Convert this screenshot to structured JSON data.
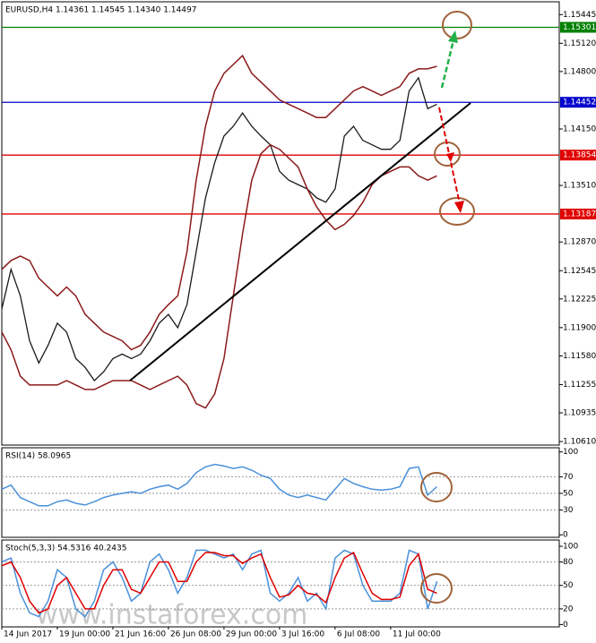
{
  "chart_data": [
    {
      "type": "line",
      "title": "EURUSD,H4 1.14361 1.14545 1.14340 1.14497",
      "ylim": [
        1.1057,
        1.1559
      ],
      "yticks": [
        1.15445,
        {
          "value": 1.1512,
          "label": "1.15120"
        },
        {
          "value": 1.148,
          "label": "1.14800"
        },
        {
          "value": 1.1415,
          "label": "1.14150"
        },
        {
          "value": 1.1351,
          "label": "1.13510"
        },
        {
          "value": 1.1287,
          "label": "1.12870"
        },
        1.12545,
        1.12225,
        {
          "value": 1.119,
          "label": "1.11900"
        },
        {
          "value": 1.1158,
          "label": "1.11580"
        },
        1.11255,
        1.10935,
        {
          "value": 1.1061,
          "label": "1.10610"
        }
      ],
      "grid": false,
      "levels": [
        {
          "value": 1.15301,
          "color": "#008000"
        },
        {
          "value": 1.14452,
          "color": "#0000cc"
        },
        {
          "value": 1.13854,
          "color": "#e00000"
        },
        {
          "value": 1.13187,
          "color": "#e00000"
        }
      ],
      "series": [
        {
          "color": "#1a1a1a",
          "values": [
            1.1211,
            1.1256,
            1.1226,
            1.1175,
            1.115,
            1.117,
            1.1195,
            1.1185,
            1.1155,
            1.1145,
            1.113,
            1.114,
            1.1155,
            1.116,
            1.1155,
            1.116,
            1.1175,
            1.1195,
            1.1205,
            1.119,
            1.1216,
            1.1276,
            1.1337,
            1.1377,
            1.1407,
            1.1418,
            1.1433,
            1.1418,
            1.1407,
            1.1397,
            1.1367,
            1.1357,
            1.1352,
            1.1347,
            1.1337,
            1.1332,
            1.1347,
            1.1407,
            1.1418,
            1.1402,
            1.1397,
            1.1392,
            1.1392,
            1.1402,
            1.1458,
            1.1473,
            1.1438,
            1.1443
          ]
        },
        {
          "color": "#8b1a1a",
          "values": [
            1.1256,
            1.1266,
            1.1271,
            1.1266,
            1.1246,
            1.1236,
            1.1226,
            1.1236,
            1.1226,
            1.1205,
            1.1195,
            1.1185,
            1.118,
            1.1175,
            1.1165,
            1.117,
            1.1185,
            1.1205,
            1.1216,
            1.1226,
            1.1276,
            1.1357,
            1.1418,
            1.1458,
            1.1478,
            1.1488,
            1.1498,
            1.1478,
            1.1468,
            1.1458,
            1.1448,
            1.1443,
            1.1438,
            1.1433,
            1.1428,
            1.1428,
            1.1438,
            1.1448,
            1.1458,
            1.1463,
            1.1458,
            1.1453,
            1.1458,
            1.1463,
            1.1478,
            1.1483,
            1.1483,
            1.1486
          ]
        },
        {
          "color": "#8b1a1a",
          "values": [
            1.1185,
            1.1165,
            1.1135,
            1.1125,
            1.1125,
            1.1125,
            1.1125,
            1.113,
            1.1125,
            1.112,
            1.112,
            1.1125,
            1.113,
            1.113,
            1.113,
            1.1125,
            1.112,
            1.1125,
            1.113,
            1.1135,
            1.1125,
            1.1104,
            1.1099,
            1.1115,
            1.1155,
            1.1226,
            1.1296,
            1.1357,
            1.1387,
            1.1397,
            1.1392,
            1.1382,
            1.1372,
            1.1347,
            1.1327,
            1.1312,
            1.1301,
            1.1307,
            1.1317,
            1.1332,
            1.1352,
            1.1362,
            1.1367,
            1.1372,
            1.1372,
            1.1362,
            1.1357,
            1.1362
          ]
        }
      ]
    },
    {
      "type": "line",
      "title": "RSI(14) 58.0965",
      "ylim": [
        -3,
        105
      ],
      "yticks": [
        100,
        70,
        50,
        30,
        0
      ],
      "grid": true,
      "series": [
        {
          "color": "#4a90d9",
          "values": [
            55,
            60,
            45,
            40,
            35,
            35,
            40,
            42,
            38,
            36,
            40,
            45,
            48,
            50,
            52,
            50,
            55,
            58,
            60,
            55,
            62,
            75,
            82,
            85,
            83,
            80,
            82,
            78,
            72,
            68,
            55,
            48,
            45,
            48,
            45,
            42,
            55,
            68,
            62,
            58,
            55,
            54,
            55,
            58,
            80,
            82,
            48,
            58
          ]
        }
      ]
    },
    {
      "type": "line",
      "title": "Stoch(5,3,3) 54.5316 40.2435",
      "ylim": [
        -3,
        108
      ],
      "yticks": [
        100,
        80,
        50,
        20,
        0
      ],
      "grid": true,
      "categories": [
        "14 Jun 2017",
        null,
        null,
        null,
        null,
        null,
        "19 Jun 00:00",
        null,
        null,
        null,
        null,
        null,
        "21 Jun 16:00",
        null,
        null,
        null,
        null,
        null,
        "26 Jun 08:00",
        null,
        null,
        null,
        null,
        null,
        "29 Jun 00:00",
        null,
        null,
        null,
        null,
        null,
        "3 Jul 16:00",
        null,
        null,
        null,
        null,
        null,
        "6 Jul 08:00",
        null,
        null,
        null,
        null,
        null,
        "11 Jul 00:00",
        null,
        null,
        null,
        null,
        null
      ],
      "series": [
        {
          "color": "#4a90d9",
          "values": [
            80,
            85,
            40,
            15,
            10,
            30,
            70,
            60,
            20,
            10,
            30,
            70,
            80,
            60,
            30,
            40,
            80,
            90,
            70,
            40,
            60,
            95,
            95,
            90,
            85,
            90,
            70,
            90,
            95,
            40,
            30,
            40,
            60,
            30,
            40,
            20,
            85,
            95,
            90,
            50,
            30,
            30,
            30,
            40,
            95,
            90,
            20,
            55
          ]
        },
        {
          "color": "#e00000",
          "values": [
            75,
            80,
            60,
            30,
            15,
            20,
            50,
            60,
            40,
            20,
            20,
            50,
            70,
            70,
            45,
            40,
            60,
            80,
            80,
            55,
            55,
            80,
            92,
            92,
            88,
            88,
            78,
            85,
            90,
            60,
            35,
            38,
            50,
            40,
            38,
            28,
            60,
            85,
            92,
            65,
            40,
            32,
            32,
            35,
            75,
            90,
            45,
            40
          ]
        }
      ]
    }
  ],
  "watermark": "www.instaforex.com"
}
